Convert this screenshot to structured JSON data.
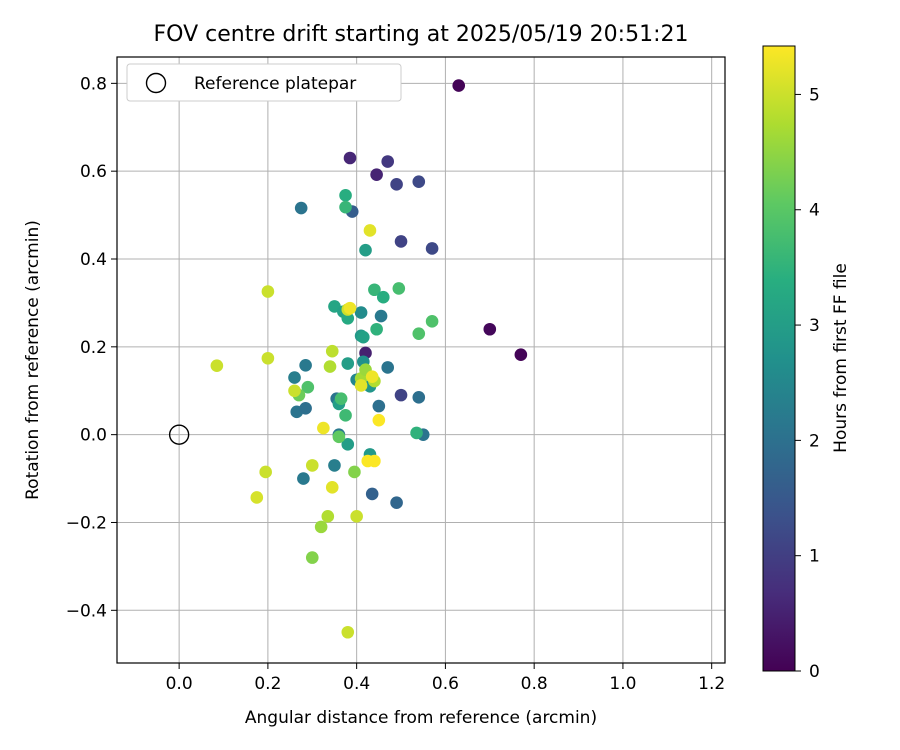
{
  "chart_data": {
    "type": "scatter",
    "title": "FOV centre drift starting at 2025/05/19 20:51:21",
    "xlabel": "Angular distance from reference (arcmin)",
    "ylabel": "Rotation from reference (arcmin)",
    "xlim": [
      -0.14,
      1.23
    ],
    "ylim": [
      -0.52,
      0.86
    ],
    "xticks": [
      "0.0",
      "0.2",
      "0.4",
      "0.6",
      "0.8",
      "1.0",
      "1.2"
    ],
    "yticks": [
      "−0.4",
      "−0.2",
      "0.0",
      "0.2",
      "0.4",
      "0.6",
      "0.8"
    ],
    "grid": true,
    "legend": {
      "position": "top-left",
      "entries": [
        "Reference platepar"
      ]
    },
    "reference_point": {
      "x": 0.0,
      "y": 0.0
    },
    "colorbar": {
      "label": "Hours from first FF file",
      "colormap": "viridis",
      "range": [
        0,
        5.42
      ],
      "ticks": [
        "0",
        "1",
        "2",
        "3",
        "4",
        "5"
      ]
    },
    "points": [
      {
        "x": 0.63,
        "y": 0.795,
        "h": 0.05
      },
      {
        "x": 0.7,
        "y": 0.24,
        "h": 0.1
      },
      {
        "x": 0.77,
        "y": 0.182,
        "h": 0.05
      },
      {
        "x": 0.385,
        "y": 0.63,
        "h": 0.6
      },
      {
        "x": 0.445,
        "y": 0.592,
        "h": 0.55
      },
      {
        "x": 0.42,
        "y": 0.186,
        "h": 0.5
      },
      {
        "x": 0.47,
        "y": 0.622,
        "h": 0.9
      },
      {
        "x": 0.49,
        "y": 0.57,
        "h": 1.1
      },
      {
        "x": 0.54,
        "y": 0.576,
        "h": 1.2
      },
      {
        "x": 0.5,
        "y": 0.44,
        "h": 1.1
      },
      {
        "x": 0.57,
        "y": 0.424,
        "h": 1.2
      },
      {
        "x": 0.5,
        "y": 0.09,
        "h": 1.1
      },
      {
        "x": 0.49,
        "y": -0.155,
        "h": 1.8
      },
      {
        "x": 0.435,
        "y": -0.135,
        "h": 1.7
      },
      {
        "x": 0.39,
        "y": 0.508,
        "h": 1.6
      },
      {
        "x": 0.275,
        "y": 0.516,
        "h": 2.1
      },
      {
        "x": 0.54,
        "y": 0.085,
        "h": 2.0
      },
      {
        "x": 0.55,
        "y": 0.0,
        "h": 2.1
      },
      {
        "x": 0.47,
        "y": 0.153,
        "h": 2.1
      },
      {
        "x": 0.45,
        "y": 0.065,
        "h": 2.0
      },
      {
        "x": 0.455,
        "y": 0.27,
        "h": 2.2
      },
      {
        "x": 0.41,
        "y": 0.278,
        "h": 2.6
      },
      {
        "x": 0.285,
        "y": 0.158,
        "h": 2.2
      },
      {
        "x": 0.26,
        "y": 0.13,
        "h": 2.3
      },
      {
        "x": 0.265,
        "y": 0.052,
        "h": 2.1
      },
      {
        "x": 0.285,
        "y": 0.06,
        "h": 2.0
      },
      {
        "x": 0.28,
        "y": -0.1,
        "h": 2.2
      },
      {
        "x": 0.35,
        "y": -0.07,
        "h": 2.3
      },
      {
        "x": 0.355,
        "y": 0.082,
        "h": 2.1
      },
      {
        "x": 0.36,
        "y": 0.0,
        "h": 2.2
      },
      {
        "x": 0.4,
        "y": 0.125,
        "h": 2.5
      },
      {
        "x": 0.43,
        "y": 0.11,
        "h": 2.8
      },
      {
        "x": 0.43,
        "y": -0.045,
        "h": 2.9
      },
      {
        "x": 0.38,
        "y": -0.022,
        "h": 3.0
      },
      {
        "x": 0.415,
        "y": 0.166,
        "h": 2.7
      },
      {
        "x": 0.38,
        "y": 0.162,
        "h": 3.0
      },
      {
        "x": 0.42,
        "y": 0.42,
        "h": 3.0
      },
      {
        "x": 0.41,
        "y": 0.225,
        "h": 2.9
      },
      {
        "x": 0.415,
        "y": 0.222,
        "h": 3.1
      },
      {
        "x": 0.36,
        "y": 0.07,
        "h": 3.0
      },
      {
        "x": 0.375,
        "y": 0.545,
        "h": 3.4
      },
      {
        "x": 0.375,
        "y": 0.518,
        "h": 3.6
      },
      {
        "x": 0.35,
        "y": 0.292,
        "h": 3.2
      },
      {
        "x": 0.37,
        "y": 0.28,
        "h": 3.1
      },
      {
        "x": 0.38,
        "y": 0.265,
        "h": 3.3
      },
      {
        "x": 0.44,
        "y": 0.33,
        "h": 3.6
      },
      {
        "x": 0.46,
        "y": 0.313,
        "h": 3.4
      },
      {
        "x": 0.445,
        "y": 0.24,
        "h": 3.5
      },
      {
        "x": 0.495,
        "y": 0.333,
        "h": 3.8
      },
      {
        "x": 0.54,
        "y": 0.23,
        "h": 3.9
      },
      {
        "x": 0.57,
        "y": 0.258,
        "h": 3.9
      },
      {
        "x": 0.535,
        "y": 0.004,
        "h": 3.5
      },
      {
        "x": 0.365,
        "y": 0.082,
        "h": 3.8
      },
      {
        "x": 0.375,
        "y": 0.044,
        "h": 3.7
      },
      {
        "x": 0.29,
        "y": 0.108,
        "h": 3.9
      },
      {
        "x": 0.27,
        "y": 0.09,
        "h": 4.2
      },
      {
        "x": 0.36,
        "y": -0.005,
        "h": 4.1
      },
      {
        "x": 0.395,
        "y": -0.085,
        "h": 4.4
      },
      {
        "x": 0.3,
        "y": -0.28,
        "h": 4.4
      },
      {
        "x": 0.32,
        "y": -0.21,
        "h": 4.6
      },
      {
        "x": 0.335,
        "y": -0.186,
        "h": 4.8
      },
      {
        "x": 0.41,
        "y": 0.128,
        "h": 4.7
      },
      {
        "x": 0.38,
        "y": 0.285,
        "h": 5.0
      },
      {
        "x": 0.34,
        "y": 0.155,
        "h": 4.8
      },
      {
        "x": 0.345,
        "y": 0.19,
        "h": 4.9
      },
      {
        "x": 0.42,
        "y": 0.148,
        "h": 4.6
      },
      {
        "x": 0.44,
        "y": 0.122,
        "h": 4.8
      },
      {
        "x": 0.2,
        "y": 0.326,
        "h": 5.0
      },
      {
        "x": 0.2,
        "y": 0.174,
        "h": 5.0
      },
      {
        "x": 0.085,
        "y": 0.157,
        "h": 5.0
      },
      {
        "x": 0.26,
        "y": 0.1,
        "h": 5.0
      },
      {
        "x": 0.195,
        "y": -0.085,
        "h": 5.0
      },
      {
        "x": 0.175,
        "y": -0.143,
        "h": 5.1
      },
      {
        "x": 0.3,
        "y": -0.07,
        "h": 5.0
      },
      {
        "x": 0.345,
        "y": -0.12,
        "h": 5.2
      },
      {
        "x": 0.4,
        "y": -0.186,
        "h": 5.0
      },
      {
        "x": 0.38,
        "y": -0.45,
        "h": 5.0
      },
      {
        "x": 0.41,
        "y": 0.112,
        "h": 5.2
      },
      {
        "x": 0.435,
        "y": 0.132,
        "h": 5.3
      },
      {
        "x": 0.43,
        "y": 0.465,
        "h": 5.2
      },
      {
        "x": 0.385,
        "y": 0.288,
        "h": 5.3
      },
      {
        "x": 0.325,
        "y": 0.015,
        "h": 5.3
      },
      {
        "x": 0.45,
        "y": 0.033,
        "h": 5.4
      },
      {
        "x": 0.425,
        "y": -0.06,
        "h": 5.4
      },
      {
        "x": 0.44,
        "y": -0.06,
        "h": 5.4
      }
    ]
  }
}
